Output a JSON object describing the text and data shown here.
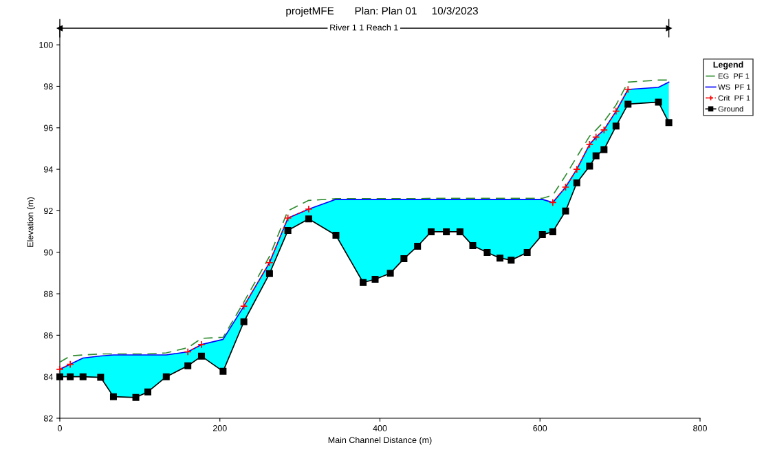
{
  "chart_data": {
    "type": "line",
    "title": "projetMFE       Plan: Plan 01     10/3/2023",
    "xlabel": "Main Channel Distance (m)",
    "ylabel": "Elevation (m)",
    "legend_title": "Legend",
    "annotations": [
      {
        "text": "River 1 1 Reach 1",
        "x": 380,
        "y": 100.8
      }
    ],
    "x": [
      0,
      13,
      29,
      51,
      67,
      95,
      110,
      133,
      160,
      177,
      204,
      230,
      262,
      285,
      311,
      345,
      379,
      394,
      413,
      430,
      447,
      464,
      483,
      500,
      516,
      534,
      550,
      564,
      584,
      603,
      616,
      632,
      646,
      662,
      670,
      680,
      695,
      710,
      748,
      761
    ],
    "series": [
      {
        "name": "EG  PF 1",
        "color": "#2e8b2e",
        "line_style": "dashed",
        "marker": "none",
        "values": [
          84.7,
          85.0,
          85.05,
          85.1,
          85.1,
          85.1,
          85.1,
          85.15,
          85.4,
          85.85,
          85.9,
          87.6,
          89.8,
          92.0,
          92.5,
          92.58,
          92.58,
          92.58,
          92.58,
          92.58,
          92.58,
          92.6,
          92.6,
          92.6,
          92.6,
          92.6,
          92.6,
          92.6,
          92.6,
          92.6,
          92.75,
          93.7,
          94.6,
          95.6,
          95.9,
          96.3,
          97.1,
          98.2,
          98.3,
          98.3
        ]
      },
      {
        "name": "WS  PF 1",
        "color": "#0000ff",
        "line_style": "solid",
        "marker": "none",
        "values": [
          84.36,
          84.6,
          84.9,
          85.0,
          85.05,
          85.05,
          85.05,
          85.05,
          85.2,
          85.55,
          85.8,
          87.4,
          89.5,
          91.65,
          92.08,
          92.55,
          92.55,
          92.55,
          92.55,
          92.55,
          92.55,
          92.55,
          92.55,
          92.55,
          92.55,
          92.55,
          92.55,
          92.55,
          92.55,
          92.55,
          92.4,
          93.14,
          94.0,
          95.2,
          95.55,
          95.9,
          96.8,
          97.85,
          97.95,
          98.2
        ],
        "lower": [
          84.0,
          84.0,
          84.0,
          83.97,
          83.04,
          83.0,
          83.27,
          84.0,
          84.53,
          84.99,
          84.26,
          86.65,
          88.97,
          91.05,
          91.61,
          90.82,
          88.54,
          88.7,
          88.99,
          89.69,
          90.29,
          90.99,
          90.99,
          90.99,
          90.32,
          89.99,
          89.72,
          89.62,
          89.99,
          90.85,
          90.99,
          91.99,
          93.35,
          94.15,
          94.65,
          94.95,
          96.08,
          97.14,
          97.24,
          96.25
        ],
        "upper": [
          84.36,
          84.6,
          84.9,
          85.0,
          85.05,
          85.05,
          85.05,
          85.05,
          85.2,
          85.55,
          85.8,
          87.4,
          89.5,
          91.65,
          92.08,
          92.55,
          92.55,
          92.55,
          92.55,
          92.55,
          92.55,
          92.55,
          92.55,
          92.55,
          92.55,
          92.55,
          92.55,
          92.55,
          92.55,
          92.55,
          92.4,
          93.14,
          94.0,
          95.2,
          95.55,
          95.9,
          96.8,
          97.85,
          97.95,
          98.2
        ]
      },
      {
        "name": "Crit  PF 1",
        "color": "#ff0000",
        "line_style": "dotted",
        "marker": "cross",
        "values": [
          84.36,
          84.6,
          null,
          null,
          null,
          null,
          null,
          null,
          85.2,
          85.55,
          null,
          87.4,
          89.5,
          91.65,
          92.08,
          null,
          null,
          null,
          null,
          null,
          null,
          null,
          null,
          null,
          null,
          null,
          null,
          null,
          null,
          null,
          92.4,
          93.14,
          94.0,
          95.2,
          95.55,
          95.9,
          96.8,
          97.85,
          null,
          null
        ]
      },
      {
        "type": "line",
        "x": [
          0,
          761
        ],
        "color": "#000000",
        "line_style": "solid",
        "marker": "triangle",
        "values": [
          100.8,
          100.8
        ]
      },
      {
        "name": "Ground",
        "color": "#000000",
        "line_style": "solid",
        "marker": "square",
        "values": [
          84.0,
          84.0,
          84.0,
          83.97,
          83.04,
          83.0,
          83.27,
          84.0,
          84.53,
          84.99,
          84.26,
          86.65,
          88.97,
          91.05,
          91.61,
          90.82,
          88.54,
          88.7,
          88.99,
          89.69,
          90.29,
          90.99,
          90.99,
          90.99,
          90.32,
          89.99,
          89.72,
          89.62,
          89.99,
          90.85,
          90.99,
          91.99,
          93.35,
          94.15,
          94.65,
          94.95,
          96.08,
          97.14,
          97.24,
          96.25
        ]
      }
    ],
    "xlim": [
      0,
      800
    ],
    "xticks": [
      0,
      200,
      400,
      600,
      800
    ],
    "ylim": [
      82,
      100.9
    ],
    "yticks": [
      82,
      84,
      86,
      88,
      90,
      92,
      94,
      96,
      98,
      100
    ],
    "grid": false,
    "legend": "top right"
  }
}
